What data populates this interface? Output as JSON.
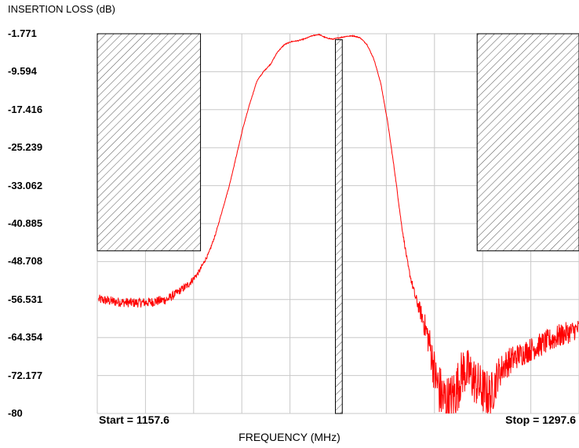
{
  "chart_data": {
    "type": "line",
    "ylabel": "INSERTION LOSS (dB)",
    "xlabel": "FREQUENCY (MHz)",
    "start_label": "Start = 1157.6",
    "stop_label": "Stop = 1297.6",
    "xlim": [
      1157.6,
      1297.6
    ],
    "ylim": [
      -80,
      -1.771
    ],
    "y_ticks": [
      "-1.771",
      "-9.594",
      "-17.416",
      "-25.239",
      "-33.062",
      "-40.885",
      "-48.708",
      "-56.531",
      "-64.354",
      "-72.177",
      "-80"
    ],
    "grid": true,
    "trace_color": "#ff0000",
    "series": [
      {
        "x": [
          1158.0,
          1163.0,
          1168.0,
          1173.0,
          1178.0,
          1181.0,
          1184.0,
          1187.0,
          1190.0,
          1192.0,
          1194.0,
          1196.0,
          1198.0,
          1200.0,
          1202.0,
          1204.0,
          1206.0,
          1208.0,
          1210.0,
          1212.0,
          1214.0,
          1216.0,
          1218.0,
          1220.0,
          1222.0,
          1224.0,
          1226.0,
          1228.0,
          1230.0,
          1232.0,
          1234.0,
          1236.0,
          1238.0,
          1240.0,
          1242.0,
          1244.0,
          1246.0,
          1248.0,
          1250.0,
          1252.0,
          1254.0,
          1256.0,
          1258.0,
          1260.0,
          1262.0,
          1264.0,
          1266.0,
          1268.0,
          1270.0,
          1272.0,
          1274.0,
          1276.0,
          1278.0,
          1280.0,
          1283.0,
          1286.0,
          1289.0,
          1292.0,
          1297.6
        ],
        "y": [
          -56.5,
          -57.0,
          -57.2,
          -57.1,
          -56.5,
          -55.0,
          -53.5,
          -51.0,
          -47.0,
          -43.0,
          -38.0,
          -33.0,
          -27.0,
          -21.0,
          -16.0,
          -11.5,
          -9.5,
          -8.0,
          -5.5,
          -4.0,
          -3.4,
          -3.2,
          -2.8,
          -2.2,
          -1.9,
          -2.6,
          -2.9,
          -2.6,
          -2.3,
          -2.2,
          -2.6,
          -4.0,
          -7.0,
          -12.0,
          -20.0,
          -30.0,
          -41.0,
          -50.0,
          -56.0,
          -60.0,
          -65.0,
          -73.0,
          -77.0,
          -78.0,
          -75.0,
          -71.0,
          -72.0,
          -74.0,
          -75.5,
          -76.5,
          -72.0,
          -70.0,
          -69.0,
          -68.0,
          -67.0,
          -66.0,
          -65.0,
          -64.0,
          -62.5
        ],
        "noise_db": [
          1.0,
          1.0,
          1.0,
          1.0,
          1.0,
          0.8,
          0.8,
          0.5,
          0.3,
          0.2,
          0.1,
          0.1,
          0.1,
          0.1,
          0.1,
          0.1,
          0.1,
          0.1,
          0.1,
          0.1,
          0.1,
          0.1,
          0.1,
          0.1,
          0.1,
          0.1,
          0.1,
          0.1,
          0.1,
          0.1,
          0.1,
          0.1,
          0.1,
          0.1,
          0.1,
          0.2,
          0.3,
          0.6,
          1.0,
          2.0,
          3.5,
          5.0,
          6.0,
          6.0,
          5.5,
          5.0,
          5.0,
          5.0,
          5.0,
          5.0,
          3.5,
          3.0,
          3.0,
          2.5,
          2.5,
          2.5,
          2.5,
          2.5,
          2.0
        ]
      }
    ],
    "masks": [
      {
        "x0": 1157.6,
        "x1": 1187.6,
        "y0": -1.771,
        "y1": -46.5
      },
      {
        "x0": 1226.8,
        "x1": 1228.8,
        "y0": -3.0,
        "y1": -80
      },
      {
        "x0": 1268.0,
        "x1": 1297.6,
        "y0": -1.771,
        "y1": -46.5
      }
    ]
  }
}
